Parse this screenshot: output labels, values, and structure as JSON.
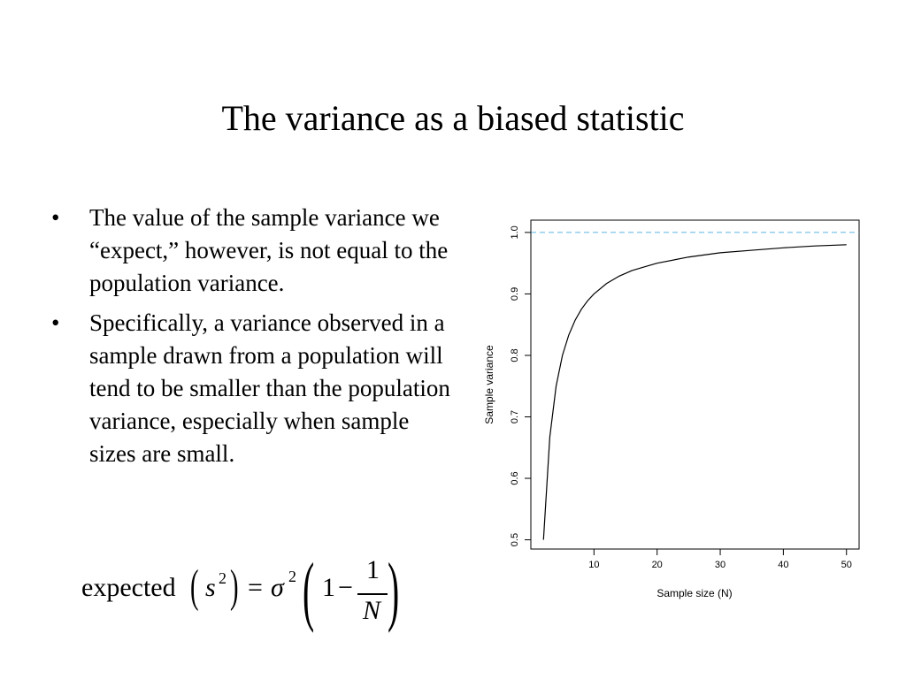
{
  "slide": {
    "title": "The variance as a biased statistic",
    "bullets": [
      "The value of the sample variance we “expect,” however, is not equal to the population variance.",
      "Specifically, a variance observed in a sample drawn from a population will tend to be smaller than the population variance, especially when sample sizes are small."
    ],
    "bullet_glyph": "•"
  },
  "formula": {
    "lhs_word": "expected",
    "open_paren": "(",
    "variable": "s",
    "exponent": "2",
    "close_paren": ")",
    "equals": "=",
    "sigma": "σ",
    "sigma_exponent": "2",
    "open_paren2": "(",
    "one": "1",
    "minus": "−",
    "numerator": "1",
    "denominator": "N",
    "close_paren2": ")"
  },
  "chart_data": {
    "type": "line",
    "title": "",
    "xlabel": "Sample size (N)",
    "ylabel": "Sample variance",
    "xlim": [
      0,
      52
    ],
    "ylim": [
      0.485,
      1.02
    ],
    "x_ticks": [
      10,
      20,
      30,
      40,
      50
    ],
    "x_tick_labels": [
      "10",
      "20",
      "30",
      "40",
      "50"
    ],
    "y_ticks": [
      0.5,
      0.6,
      0.7,
      0.8,
      0.9,
      1.0
    ],
    "y_tick_labels": [
      "0.5",
      "0.6",
      "0.7",
      "0.8",
      "0.9",
      "1.0"
    ],
    "grid": false,
    "reference_line": {
      "y": 1.0,
      "style": "dashed",
      "color": "#5ab4e5"
    },
    "series": [
      {
        "x": [
          2,
          3,
          4,
          5,
          6,
          7,
          8,
          9,
          10,
          12,
          14,
          16,
          18,
          20,
          25,
          30,
          35,
          40,
          45,
          50
        ],
        "y": [
          0.5,
          0.667,
          0.75,
          0.8,
          0.833,
          0.857,
          0.875,
          0.889,
          0.9,
          0.917,
          0.929,
          0.938,
          0.944,
          0.95,
          0.96,
          0.967,
          0.971,
          0.975,
          0.978,
          0.98
        ],
        "color": "#000000"
      }
    ]
  }
}
